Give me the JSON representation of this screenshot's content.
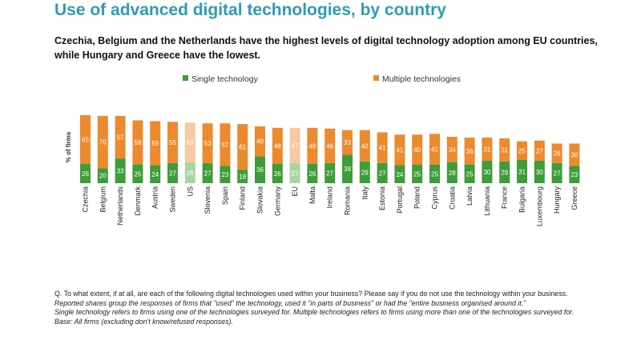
{
  "title": "Use of advanced digital technologies, by country",
  "subtitle": "Czechia, Belgium and the Netherlands have the highest levels of digital technology adoption among EU countries, while Hungary and Greece have the lowest.",
  "colors": {
    "single": "#3f9c3a",
    "multiple": "#ec8a2e",
    "single_light": "#a9d5a2",
    "multiple_light": "#f7c9a0"
  },
  "chart_data": {
    "type": "bar",
    "stacked": true,
    "ylabel": "% of firms",
    "legend": [
      "Single technology",
      "Multiple technologies"
    ],
    "categories": [
      "Czechia",
      "Belgium",
      "Netherlands",
      "Denmark",
      "Austria",
      "Sweden",
      "US",
      "Slovenia",
      "Spain",
      "Finland",
      "Slovakia",
      "Germany",
      "EU",
      "Malta",
      "Ireland",
      "Romania",
      "Italy",
      "Estonia",
      "Portugal",
      "Poland",
      "Cyprus",
      "Croatia",
      "Latvia",
      "Lithuania",
      "France",
      "Bulgaria",
      "Luxembourg",
      "Hungary",
      "Greece"
    ],
    "highlighted": [
      "US",
      "EU"
    ],
    "series": [
      {
        "name": "Single technology",
        "values": [
          26,
          20,
          33,
          25,
          24,
          27,
          28,
          27,
          23,
          18,
          36,
          26,
          27,
          26,
          27,
          38,
          29,
          27,
          24,
          25,
          25,
          28,
          25,
          30,
          29,
          31,
          30,
          27,
          23
        ]
      },
      {
        "name": "Multiple technologies",
        "values": [
          65,
          70,
          57,
          59,
          59,
          55,
          53,
          53,
          57,
          61,
          40,
          48,
          47,
          48,
          46,
          33,
          42,
          41,
          41,
          40,
          41,
          34,
          36,
          31,
          31,
          25,
          27,
          26,
          30
        ]
      }
    ],
    "ylim": [
      0,
      100
    ]
  },
  "notes": {
    "question": "Q. To what extent, if at all, are each of the following digital technologies used within your business? Please say if you do not use the technology within your business.",
    "reported": "Reported shares group the responses of firms that \"used\" the technology, used it \"in parts of business\" or had the \"entire business organised around it.\"",
    "definition": "Single technology refers to firms using one of the technologies surveyed for. Multiple technologies refers to firms using more than one of the technologies surveyed for.",
    "base": "Base: All firms (excluding don't know/refused responses)."
  }
}
